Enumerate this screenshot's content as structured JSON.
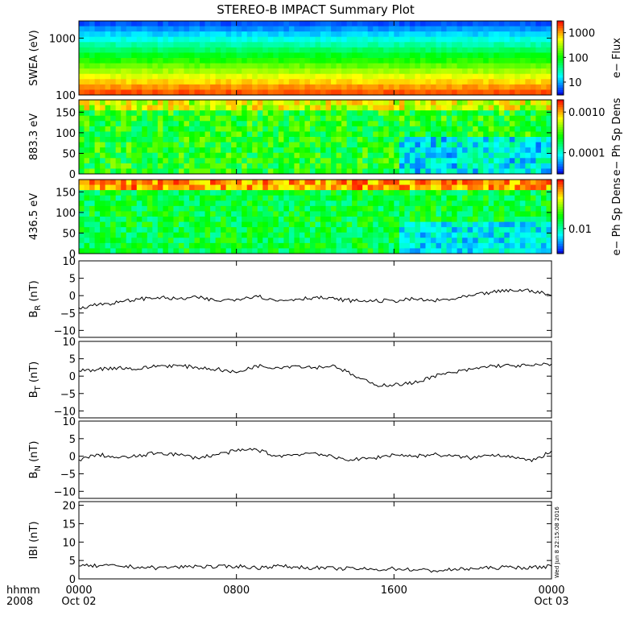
{
  "chart_data": [
    {
      "type": "heatmap",
      "title": "STEREO-B IMPACT Summary Plot",
      "ylabel": "SWEA (eV)",
      "yscale": "log",
      "ylim": [
        100,
        2000
      ],
      "yticks": [
        {
          "v": 100,
          "label": "100"
        },
        {
          "v": 1000,
          "label": "1000"
        }
      ],
      "colorbar_label": "e− Flux",
      "colorbar_scale": "log",
      "colorbar_ticks": [
        {
          "v": 10,
          "label": "10"
        },
        {
          "v": 100,
          "label": "100"
        },
        {
          "v": 1000,
          "label": "1000"
        }
      ],
      "colorbar_range": [
        3,
        3000
      ],
      "energy_profile": [
        {
          "e": 100,
          "level": 0.98
        },
        {
          "e": 150,
          "level": 0.9
        },
        {
          "e": 200,
          "level": 0.8
        },
        {
          "e": 300,
          "level": 0.64
        },
        {
          "e": 450,
          "level": 0.5
        },
        {
          "e": 600,
          "level": 0.42
        },
        {
          "e": 800,
          "level": 0.3
        },
        {
          "e": 1100,
          "level": 0.2
        },
        {
          "e": 1500,
          "level": 0.12
        },
        {
          "e": 2000,
          "level": 0.06
        }
      ]
    },
    {
      "type": "heatmap",
      "ylabel": "883.3 eV",
      "ylim": [
        0,
        180
      ],
      "yticks": [
        {
          "v": 0,
          "label": "0"
        },
        {
          "v": 50,
          "label": "50"
        },
        {
          "v": 100,
          "label": "100"
        },
        {
          "v": 150,
          "label": "150"
        }
      ],
      "colorbar_label": "e− Ph Sp Dens",
      "colorbar_scale": "log",
      "colorbar_ticks": [
        {
          "v": 0.0001,
          "label": "0.0001"
        },
        {
          "v": 0.001,
          "label": "0.0010"
        }
      ],
      "colorbar_range": [
        3e-05,
        0.002
      ]
    },
    {
      "type": "heatmap",
      "ylabel": "436.5 eV",
      "ylim": [
        0,
        180
      ],
      "yticks": [
        {
          "v": 0,
          "label": "0"
        },
        {
          "v": 50,
          "label": "50"
        },
        {
          "v": 100,
          "label": "100"
        },
        {
          "v": 150,
          "label": "150"
        }
      ],
      "colorbar_label": "e− Ph Sp Dens",
      "colorbar_scale": "log",
      "colorbar_ticks": [
        {
          "v": 0.01,
          "label": "0.01"
        }
      ],
      "colorbar_range": [
        0.004,
        0.06
      ]
    },
    {
      "type": "line",
      "ylabel": "B",
      "ylabel_sub": "R",
      "ylabel_unit": " (nT)",
      "ylim": [
        -12,
        10
      ],
      "yticks": [
        {
          "v": -10,
          "label": "−10"
        },
        {
          "v": -5,
          "label": "−5"
        },
        {
          "v": 0,
          "label": "0"
        },
        {
          "v": 5,
          "label": "5"
        },
        {
          "v": 10,
          "label": "10"
        }
      ],
      "x": [
        0,
        1,
        2,
        3,
        4,
        5,
        6,
        7,
        8,
        9,
        10,
        11,
        12,
        13,
        14,
        15,
        16,
        17,
        18,
        19,
        20,
        21,
        22,
        23,
        24
      ],
      "y": [
        -3.5,
        -2.5,
        -2,
        -1,
        -0.5,
        -1,
        -0.5,
        -1.5,
        -1,
        0,
        -1.5,
        -1,
        -0.5,
        -1,
        -1.5,
        -1.5,
        -1.5,
        -1,
        -1.5,
        -1,
        0,
        1,
        1.5,
        1.5,
        0
      ]
    },
    {
      "type": "line",
      "ylabel": "B",
      "ylabel_sub": "T",
      "ylabel_unit": " (nT)",
      "ylim": [
        -12,
        10
      ],
      "yticks": [
        {
          "v": -10,
          "label": "−10"
        },
        {
          "v": -5,
          "label": "−5"
        },
        {
          "v": 0,
          "label": "0"
        },
        {
          "v": 5,
          "label": "5"
        },
        {
          "v": 10,
          "label": "10"
        }
      ],
      "x": [
        0,
        1,
        2,
        3,
        4,
        5,
        6,
        7,
        8,
        9,
        10,
        11,
        12,
        13,
        14,
        15,
        16,
        17,
        18,
        19,
        20,
        21,
        22,
        23,
        24
      ],
      "y": [
        1.5,
        2,
        2.5,
        2,
        3,
        3,
        2.5,
        2,
        1,
        3,
        2.5,
        3,
        2.5,
        3,
        0,
        -2.5,
        -2.5,
        -2,
        0,
        1,
        2,
        3,
        3,
        3,
        3.5
      ]
    },
    {
      "type": "line",
      "ylabel": "B",
      "ylabel_sub": "N",
      "ylabel_unit": " (nT)",
      "ylim": [
        -12,
        10
      ],
      "yticks": [
        {
          "v": -10,
          "label": "−10"
        },
        {
          "v": -5,
          "label": "−5"
        },
        {
          "v": 0,
          "label": "0"
        },
        {
          "v": 5,
          "label": "5"
        },
        {
          "v": 10,
          "label": "10"
        }
      ],
      "x": [
        0,
        1,
        2,
        3,
        4,
        5,
        6,
        7,
        8,
        9,
        10,
        11,
        12,
        13,
        14,
        15,
        16,
        17,
        18,
        19,
        20,
        21,
        22,
        23,
        24
      ],
      "y": [
        -1,
        0.5,
        -0.5,
        0,
        1,
        0.5,
        -0.5,
        0.5,
        1.5,
        2,
        0,
        0.5,
        1,
        -0.5,
        -1,
        -0.5,
        0.5,
        0,
        0.5,
        0,
        -0.5,
        0.5,
        0,
        -1.5,
        1.5
      ]
    },
    {
      "type": "line",
      "ylabel": "IBI (nT)",
      "ylim": [
        0,
        21
      ],
      "yticks": [
        {
          "v": 0,
          "label": "0"
        },
        {
          "v": 5,
          "label": "5"
        },
        {
          "v": 10,
          "label": "10"
        },
        {
          "v": 15,
          "label": "15"
        },
        {
          "v": 20,
          "label": "20"
        }
      ],
      "x": [
        0,
        1,
        2,
        3,
        4,
        5,
        6,
        7,
        8,
        9,
        10,
        11,
        12,
        13,
        14,
        15,
        16,
        17,
        18,
        19,
        20,
        21,
        22,
        23,
        24
      ],
      "y": [
        3.5,
        3.5,
        3.5,
        3.2,
        3,
        3.2,
        3.5,
        3.2,
        3.5,
        3,
        3.5,
        3.2,
        3,
        2.8,
        2.8,
        2.5,
        2.8,
        2.5,
        2.2,
        2.5,
        2.8,
        3,
        3.2,
        3,
        3.5
      ]
    }
  ],
  "x_axis": {
    "row1_label": "hhmm",
    "row2_label": "2008",
    "ticks": [
      {
        "v": 0,
        "row1": "0000",
        "row2": "Oct 02"
      },
      {
        "v": 8,
        "row1": "0800",
        "row2": ""
      },
      {
        "v": 16,
        "row1": "1600",
        "row2": ""
      },
      {
        "v": 24,
        "row1": "0000",
        "row2": "Oct 03"
      }
    ],
    "range": [
      0,
      24
    ]
  },
  "timestamp": "Wed Jun  8 22:15:08 2016"
}
